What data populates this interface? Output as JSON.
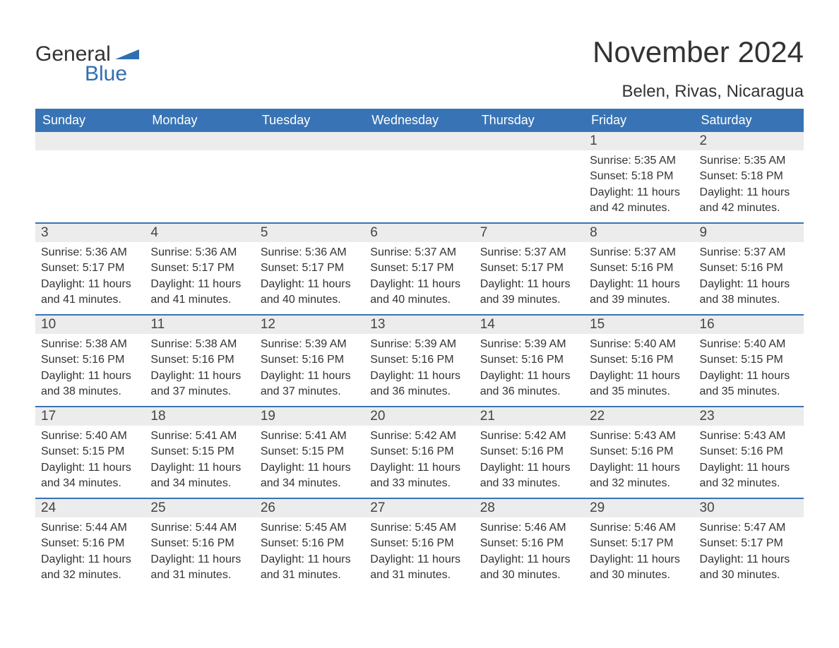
{
  "logo": {
    "text1": "General",
    "text2": "Blue",
    "flag_color": "#2f6fb0"
  },
  "title": "November 2024",
  "location": "Belen, Rivas, Nicaragua",
  "colors": {
    "header_bg": "#3874b5",
    "header_text": "#ffffff",
    "daynum_bg": "#ececec",
    "row_border": "#3874b5",
    "body_text": "#333333",
    "logo_blue": "#2f6fb0",
    "background": "#ffffff"
  },
  "typography": {
    "title_fontsize": 42,
    "location_fontsize": 24,
    "header_fontsize": 18,
    "daynum_fontsize": 19,
    "body_fontsize": 16,
    "logo_fontsize": 30,
    "font_family": "Arial"
  },
  "day_headers": [
    "Sunday",
    "Monday",
    "Tuesday",
    "Wednesday",
    "Thursday",
    "Friday",
    "Saturday"
  ],
  "weeks": [
    [
      {
        "empty": true
      },
      {
        "empty": true
      },
      {
        "empty": true
      },
      {
        "empty": true
      },
      {
        "empty": true
      },
      {
        "day": "1",
        "sunrise": "Sunrise: 5:35 AM",
        "sunset": "Sunset: 5:18 PM",
        "daylight": "Daylight: 11 hours and 42 minutes."
      },
      {
        "day": "2",
        "sunrise": "Sunrise: 5:35 AM",
        "sunset": "Sunset: 5:18 PM",
        "daylight": "Daylight: 11 hours and 42 minutes."
      }
    ],
    [
      {
        "day": "3",
        "sunrise": "Sunrise: 5:36 AM",
        "sunset": "Sunset: 5:17 PM",
        "daylight": "Daylight: 11 hours and 41 minutes."
      },
      {
        "day": "4",
        "sunrise": "Sunrise: 5:36 AM",
        "sunset": "Sunset: 5:17 PM",
        "daylight": "Daylight: 11 hours and 41 minutes."
      },
      {
        "day": "5",
        "sunrise": "Sunrise: 5:36 AM",
        "sunset": "Sunset: 5:17 PM",
        "daylight": "Daylight: 11 hours and 40 minutes."
      },
      {
        "day": "6",
        "sunrise": "Sunrise: 5:37 AM",
        "sunset": "Sunset: 5:17 PM",
        "daylight": "Daylight: 11 hours and 40 minutes."
      },
      {
        "day": "7",
        "sunrise": "Sunrise: 5:37 AM",
        "sunset": "Sunset: 5:17 PM",
        "daylight": "Daylight: 11 hours and 39 minutes."
      },
      {
        "day": "8",
        "sunrise": "Sunrise: 5:37 AM",
        "sunset": "Sunset: 5:16 PM",
        "daylight": "Daylight: 11 hours and 39 minutes."
      },
      {
        "day": "9",
        "sunrise": "Sunrise: 5:37 AM",
        "sunset": "Sunset: 5:16 PM",
        "daylight": "Daylight: 11 hours and 38 minutes."
      }
    ],
    [
      {
        "day": "10",
        "sunrise": "Sunrise: 5:38 AM",
        "sunset": "Sunset: 5:16 PM",
        "daylight": "Daylight: 11 hours and 38 minutes."
      },
      {
        "day": "11",
        "sunrise": "Sunrise: 5:38 AM",
        "sunset": "Sunset: 5:16 PM",
        "daylight": "Daylight: 11 hours and 37 minutes."
      },
      {
        "day": "12",
        "sunrise": "Sunrise: 5:39 AM",
        "sunset": "Sunset: 5:16 PM",
        "daylight": "Daylight: 11 hours and 37 minutes."
      },
      {
        "day": "13",
        "sunrise": "Sunrise: 5:39 AM",
        "sunset": "Sunset: 5:16 PM",
        "daylight": "Daylight: 11 hours and 36 minutes."
      },
      {
        "day": "14",
        "sunrise": "Sunrise: 5:39 AM",
        "sunset": "Sunset: 5:16 PM",
        "daylight": "Daylight: 11 hours and 36 minutes."
      },
      {
        "day": "15",
        "sunrise": "Sunrise: 5:40 AM",
        "sunset": "Sunset: 5:16 PM",
        "daylight": "Daylight: 11 hours and 35 minutes."
      },
      {
        "day": "16",
        "sunrise": "Sunrise: 5:40 AM",
        "sunset": "Sunset: 5:15 PM",
        "daylight": "Daylight: 11 hours and 35 minutes."
      }
    ],
    [
      {
        "day": "17",
        "sunrise": "Sunrise: 5:40 AM",
        "sunset": "Sunset: 5:15 PM",
        "daylight": "Daylight: 11 hours and 34 minutes."
      },
      {
        "day": "18",
        "sunrise": "Sunrise: 5:41 AM",
        "sunset": "Sunset: 5:15 PM",
        "daylight": "Daylight: 11 hours and 34 minutes."
      },
      {
        "day": "19",
        "sunrise": "Sunrise: 5:41 AM",
        "sunset": "Sunset: 5:15 PM",
        "daylight": "Daylight: 11 hours and 34 minutes."
      },
      {
        "day": "20",
        "sunrise": "Sunrise: 5:42 AM",
        "sunset": "Sunset: 5:16 PM",
        "daylight": "Daylight: 11 hours and 33 minutes."
      },
      {
        "day": "21",
        "sunrise": "Sunrise: 5:42 AM",
        "sunset": "Sunset: 5:16 PM",
        "daylight": "Daylight: 11 hours and 33 minutes."
      },
      {
        "day": "22",
        "sunrise": "Sunrise: 5:43 AM",
        "sunset": "Sunset: 5:16 PM",
        "daylight": "Daylight: 11 hours and 32 minutes."
      },
      {
        "day": "23",
        "sunrise": "Sunrise: 5:43 AM",
        "sunset": "Sunset: 5:16 PM",
        "daylight": "Daylight: 11 hours and 32 minutes."
      }
    ],
    [
      {
        "day": "24",
        "sunrise": "Sunrise: 5:44 AM",
        "sunset": "Sunset: 5:16 PM",
        "daylight": "Daylight: 11 hours and 32 minutes."
      },
      {
        "day": "25",
        "sunrise": "Sunrise: 5:44 AM",
        "sunset": "Sunset: 5:16 PM",
        "daylight": "Daylight: 11 hours and 31 minutes."
      },
      {
        "day": "26",
        "sunrise": "Sunrise: 5:45 AM",
        "sunset": "Sunset: 5:16 PM",
        "daylight": "Daylight: 11 hours and 31 minutes."
      },
      {
        "day": "27",
        "sunrise": "Sunrise: 5:45 AM",
        "sunset": "Sunset: 5:16 PM",
        "daylight": "Daylight: 11 hours and 31 minutes."
      },
      {
        "day": "28",
        "sunrise": "Sunrise: 5:46 AM",
        "sunset": "Sunset: 5:16 PM",
        "daylight": "Daylight: 11 hours and 30 minutes."
      },
      {
        "day": "29",
        "sunrise": "Sunrise: 5:46 AM",
        "sunset": "Sunset: 5:17 PM",
        "daylight": "Daylight: 11 hours and 30 minutes."
      },
      {
        "day": "30",
        "sunrise": "Sunrise: 5:47 AM",
        "sunset": "Sunset: 5:17 PM",
        "daylight": "Daylight: 11 hours and 30 minutes."
      }
    ]
  ]
}
